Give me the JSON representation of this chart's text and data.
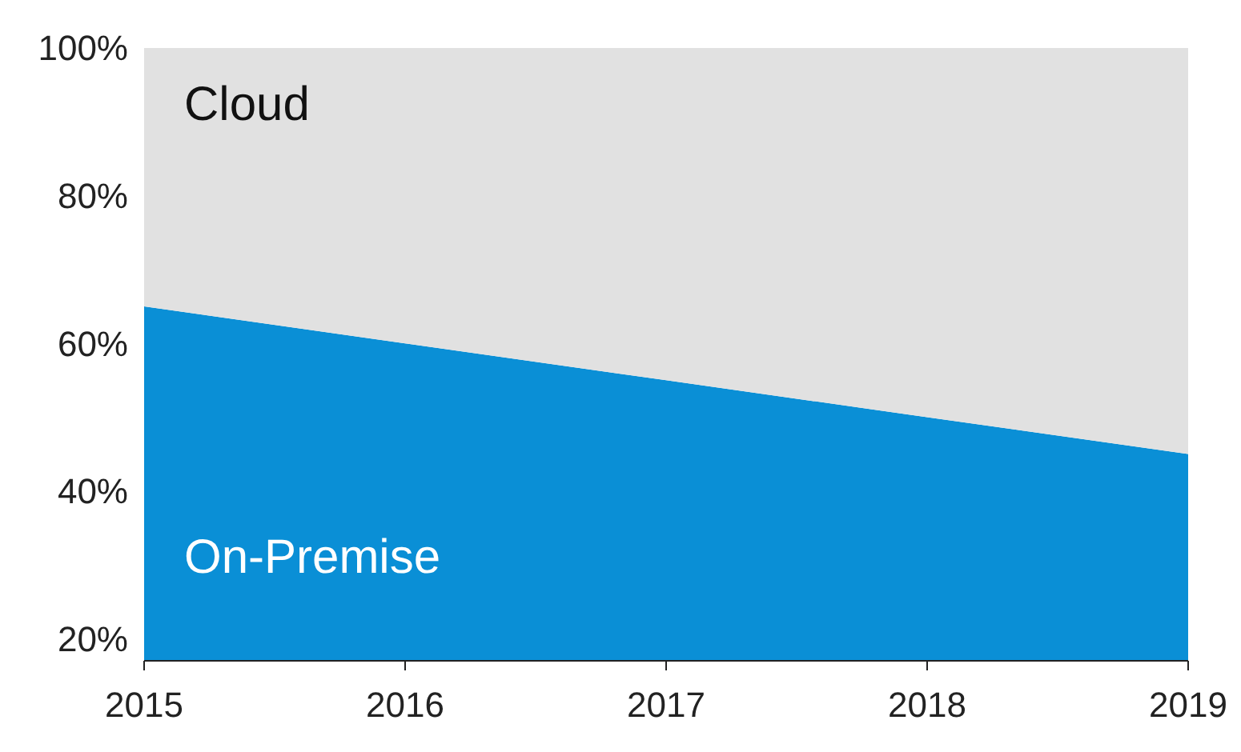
{
  "chart_data": {
    "type": "area",
    "stacked": true,
    "x": [
      2015,
      2016,
      2017,
      2018,
      2019
    ],
    "xlim": [
      2015,
      2019
    ],
    "xticks": [
      2015,
      2016,
      2017,
      2018,
      2019
    ],
    "ylim": [
      17,
      100
    ],
    "yticks": [
      {
        "value": 20,
        "label": "20%"
      },
      {
        "value": 40,
        "label": "40%"
      },
      {
        "value": 60,
        "label": "60%"
      },
      {
        "value": 80,
        "label": "80%"
      },
      {
        "value": 100,
        "label": "100%"
      }
    ],
    "grid": false,
    "series": [
      {
        "name": "On-Premise",
        "color": "#0a8fd6",
        "values": [
          65,
          60,
          55,
          50,
          45
        ]
      },
      {
        "name": "Cloud",
        "color": "#e1e1e1",
        "values": [
          35,
          40,
          45,
          50,
          55
        ]
      }
    ]
  }
}
